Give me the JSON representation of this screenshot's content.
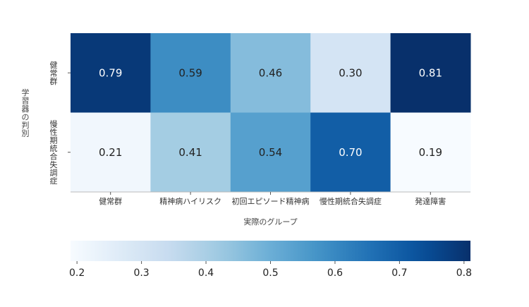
{
  "chart_data": {
    "type": "heatmap",
    "title": "",
    "xlabel": "実際のグループ",
    "ylabel": "学習器の判別",
    "x_categories": [
      "健常群",
      "精神病ハイリスク",
      "初回エピソード精神病",
      "慢性期統合失調症",
      "発達障害"
    ],
    "y_categories": [
      "健常群",
      "慢性期統合失調症"
    ],
    "values": [
      [
        0.79,
        0.59,
        0.46,
        0.3,
        0.81
      ],
      [
        0.21,
        0.41,
        0.54,
        0.7,
        0.19
      ]
    ],
    "value_labels": [
      [
        "0.79",
        "0.59",
        "0.46",
        "0.30",
        "0.81"
      ],
      [
        "0.21",
        "0.41",
        "0.54",
        "0.70",
        "0.19"
      ]
    ],
    "colormap": "Blues",
    "vmin": 0.19,
    "vmax": 0.81,
    "colorbar": {
      "orientation": "horizontal",
      "placement": "bottom",
      "ticks": [
        0.2,
        0.3,
        0.4,
        0.5,
        0.6,
        0.7,
        0.8
      ],
      "tick_labels": [
        "0.2",
        "0.3",
        "0.4",
        "0.5",
        "0.6",
        "0.7",
        "0.8"
      ]
    },
    "grid": false
  }
}
